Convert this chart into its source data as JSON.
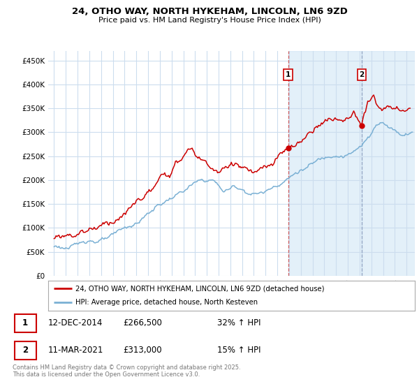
{
  "title": "24, OTHO WAY, NORTH HYKEHAM, LINCOLN, LN6 9ZD",
  "subtitle": "Price paid vs. HM Land Registry's House Price Index (HPI)",
  "ylim": [
    0,
    470000
  ],
  "yticks": [
    0,
    50000,
    100000,
    150000,
    200000,
    250000,
    300000,
    350000,
    400000,
    450000
  ],
  "yticklabels": [
    "£0",
    "£50K",
    "£100K",
    "£150K",
    "£200K",
    "£250K",
    "£300K",
    "£350K",
    "£400K",
    "£450K"
  ],
  "red_color": "#cc0000",
  "blue_color": "#7ab0d4",
  "marker1_x": 2014.92,
  "marker1_y": 266500,
  "marker2_x": 2021.19,
  "marker2_y": 313000,
  "vline1_x": 2014.92,
  "vline2_x": 2021.19,
  "shade1_start": 2014.92,
  "shade1_end": 2021.19,
  "shade2_start": 2021.19,
  "shade2_end": 2025.7,
  "legend_entry1": "24, OTHO WAY, NORTH HYKEHAM, LINCOLN, LN6 9ZD (detached house)",
  "legend_entry2": "HPI: Average price, detached house, North Kesteven",
  "table_row1": [
    "1",
    "12-DEC-2014",
    "£266,500",
    "32% ↑ HPI"
  ],
  "table_row2": [
    "2",
    "11-MAR-2021",
    "£313,000",
    "15% ↑ HPI"
  ],
  "footnote": "Contains HM Land Registry data © Crown copyright and database right 2025.\nThis data is licensed under the Open Government Licence v3.0.",
  "background_color": "#ffffff",
  "plot_bg_color": "#ffffff",
  "grid_color": "#ccddee",
  "xmin": 1994.5,
  "xmax": 2025.7
}
